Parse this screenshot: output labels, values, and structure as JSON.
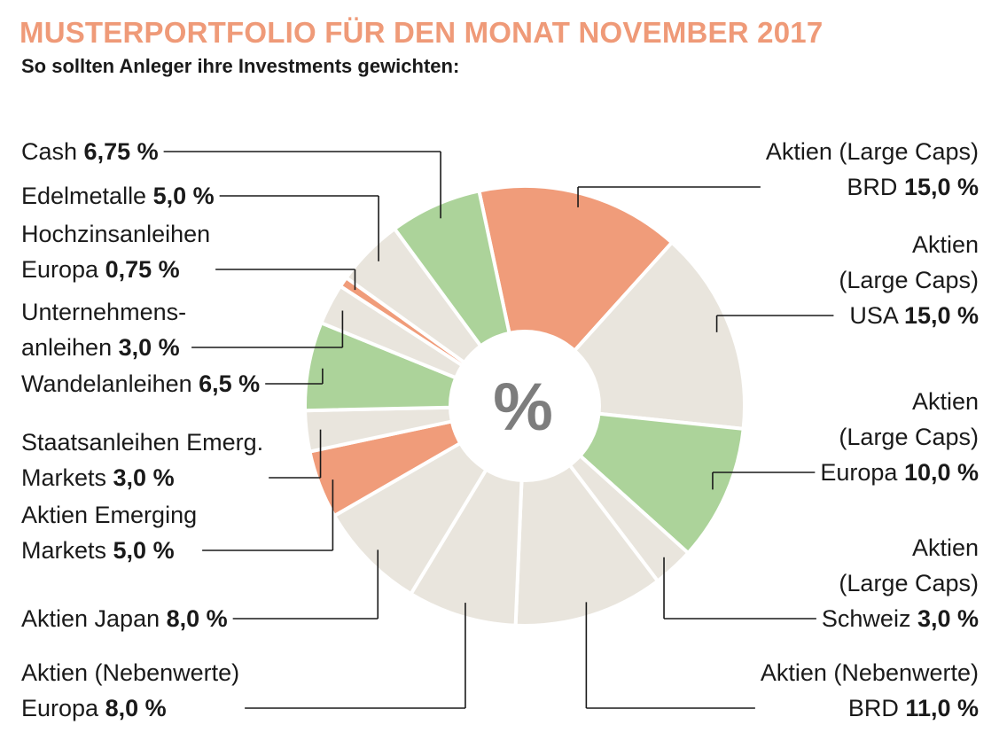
{
  "title": "MUSTERPORTFOLIO FÜR DEN MONAT NOVEMBER 2017",
  "subtitle": "So sollten Anleger ihre Investments gewichten:",
  "colors": {
    "title": "#ef9a78",
    "accent": "#f09c7a",
    "green": "#acd39a",
    "neutral": "#e9e5dd",
    "line": "#1a1a1a"
  },
  "chart_data": {
    "type": "pie",
    "center_label": "%",
    "slices": [
      {
        "label_lines": [
          "Aktien (Large Caps)",
          "BRD"
        ],
        "value_text": "15,0 %",
        "value": 15.0,
        "color": "accent"
      },
      {
        "label_lines": [
          "Aktien",
          "(Large Caps)",
          "USA"
        ],
        "value_text": "15,0 %",
        "value": 15.0,
        "color": "neutral"
      },
      {
        "label_lines": [
          "Aktien",
          "(Large Caps)",
          "Europa"
        ],
        "value_text": "10,0 %",
        "value": 10.0,
        "color": "green"
      },
      {
        "label_lines": [
          "Aktien",
          "(Large Caps)",
          "Schweiz"
        ],
        "value_text": "3,0 %",
        "value": 3.0,
        "color": "neutral"
      },
      {
        "label_lines": [
          "Aktien (Nebenwerte)",
          "BRD"
        ],
        "value_text": "11,0 %",
        "value": 11.0,
        "color": "neutral"
      },
      {
        "label_lines": [
          "Aktien (Nebenwerte)",
          "Europa"
        ],
        "value_text": "8,0 %",
        "value": 8.0,
        "color": "neutral"
      },
      {
        "label_lines": [
          "Aktien Japan"
        ],
        "value_text": "8,0 %",
        "value": 8.0,
        "color": "neutral"
      },
      {
        "label_lines": [
          "Aktien Emerging",
          "Markets"
        ],
        "value_text": "5,0 %",
        "value": 5.0,
        "color": "accent"
      },
      {
        "label_lines": [
          "Staatsanleihen Emerg.",
          "Markets"
        ],
        "value_text": "3,0 %",
        "value": 3.0,
        "color": "neutral"
      },
      {
        "label_lines": [
          "Wandelanleihen"
        ],
        "value_text": "6,5 %",
        "value": 6.5,
        "color": "green"
      },
      {
        "label_lines": [
          "Unternehmens-",
          "anleihen"
        ],
        "value_text": "3,0 %",
        "value": 3.0,
        "color": "neutral"
      },
      {
        "label_lines": [
          "Hochzinsanleihen",
          "Europa"
        ],
        "value_text": "0,75 %",
        "value": 0.75,
        "color": "accent"
      },
      {
        "label_lines": [
          "Edelmetalle"
        ],
        "value_text": "5,0 %",
        "value": 5.0,
        "color": "neutral"
      },
      {
        "label_lines": [
          "Cash"
        ],
        "value_text": "6,75 %",
        "value": 6.75,
        "color": "green"
      }
    ]
  }
}
